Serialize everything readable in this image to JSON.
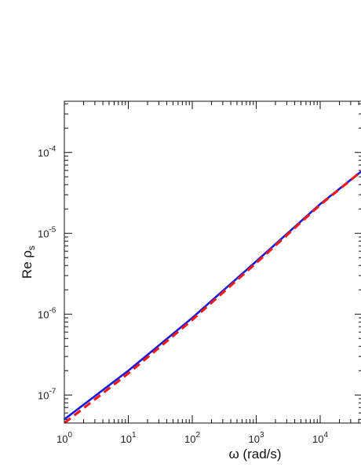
{
  "chart_data": {
    "type": "line",
    "title": "",
    "xlabel": "ω (rad/s)",
    "ylabel_main": "Re ρ",
    "ylabel_sub": "s",
    "x_scale": "log",
    "y_scale": "log",
    "xlim": [
      1,
      46000
    ],
    "ylim": [
      4.5e-08,
      0.00043
    ],
    "x_ticks": [
      {
        "value": 1,
        "base": "10",
        "exp": "0"
      },
      {
        "value": 10,
        "base": "10",
        "exp": "1"
      },
      {
        "value": 100,
        "base": "10",
        "exp": "2"
      },
      {
        "value": 1000,
        "base": "10",
        "exp": "3"
      },
      {
        "value": 10000,
        "base": "10",
        "exp": "4"
      }
    ],
    "y_ticks": [
      {
        "value": 1e-07,
        "base": "10",
        "exp": "-7"
      },
      {
        "value": 1e-06,
        "base": "10",
        "exp": "-6"
      },
      {
        "value": 1e-05,
        "base": "10",
        "exp": "-5"
      },
      {
        "value": 0.0001,
        "base": "10",
        "exp": "-4"
      }
    ],
    "grid": false,
    "legend": "none",
    "series": [
      {
        "color": "#1a1adb",
        "style": "solid",
        "x": [
          1,
          10,
          100,
          1000,
          10000,
          46000
        ],
        "y": [
          5e-08,
          2e-07,
          9e-07,
          4.5e-06,
          2.3e-05,
          6e-05
        ]
      },
      {
        "color": "#ee1c1c",
        "style": "dashed",
        "x": [
          1,
          10,
          100,
          1000,
          10000,
          46000
        ],
        "y": [
          4.5e-08,
          1.85e-07,
          8.5e-07,
          4.3e-06,
          2.25e-05,
          6e-05
        ]
      }
    ]
  }
}
